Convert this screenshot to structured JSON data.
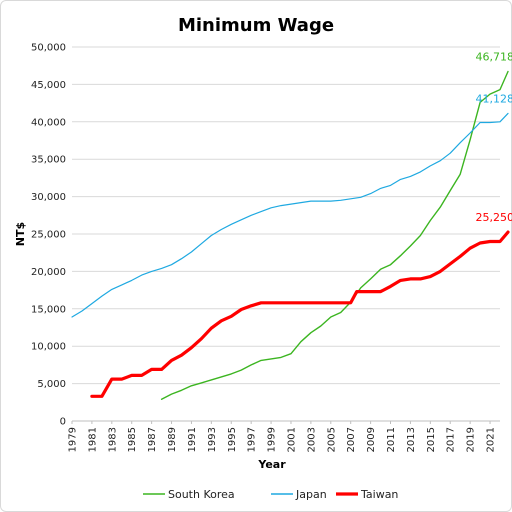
{
  "chart_data": {
    "type": "line",
    "title": "Minimum Wage",
    "xlabel": "Year",
    "ylabel": "NT$",
    "ylim": [
      0,
      50000
    ],
    "xlim": [
      1979,
      2022
    ],
    "yticks": [
      "0",
      "5,000",
      "10,000",
      "15,000",
      "20,000",
      "25,000",
      "30,000",
      "35,000",
      "40,000",
      "45,000",
      "50,000"
    ],
    "xticks": [
      "1979",
      "1981",
      "1983",
      "1985",
      "1987",
      "1989",
      "1991",
      "1993",
      "1995",
      "1997",
      "1999",
      "2001",
      "2003",
      "2005",
      "2007",
      "2009",
      "2011",
      "2013",
      "2015",
      "2017",
      "2019",
      "2021"
    ],
    "grid": true,
    "legend": "bottom",
    "series": [
      {
        "name": "South Korea",
        "color": "#3cb521",
        "width": 1.4,
        "points": [
          [
            1988,
            2900
          ],
          [
            1989,
            3600
          ],
          [
            1990,
            4100
          ],
          [
            1991,
            4700
          ],
          [
            1992,
            5100
          ],
          [
            1993,
            5500
          ],
          [
            1994,
            5900
          ],
          [
            1995,
            6300
          ],
          [
            1996,
            6800
          ],
          [
            1997,
            7500
          ],
          [
            1998,
            8100
          ],
          [
            1999,
            8300
          ],
          [
            2000,
            8500
          ],
          [
            2001,
            9000
          ],
          [
            2002,
            10600
          ],
          [
            2003,
            11800
          ],
          [
            2004,
            12700
          ],
          [
            2005,
            13900
          ],
          [
            2006,
            14500
          ],
          [
            2007,
            15900
          ],
          [
            2008,
            17800
          ],
          [
            2009,
            19000
          ],
          [
            2010,
            20300
          ],
          [
            2011,
            20900
          ],
          [
            2012,
            22100
          ],
          [
            2013,
            23400
          ],
          [
            2014,
            24800
          ],
          [
            2015,
            26800
          ],
          [
            2016,
            28600
          ],
          [
            2017,
            30800
          ],
          [
            2018,
            33000
          ],
          [
            2019,
            37600
          ],
          [
            2020,
            42600
          ],
          [
            2021,
            43700
          ],
          [
            2022,
            44300
          ],
          [
            2022.8,
            46718
          ]
        ],
        "end_label": "46,718"
      },
      {
        "name": "Japan",
        "color": "#1fa9e1",
        "width": 1.2,
        "points": [
          [
            1979,
            13900
          ],
          [
            1980,
            14700
          ],
          [
            1981,
            15700
          ],
          [
            1982,
            16700
          ],
          [
            1983,
            17600
          ],
          [
            1984,
            18200
          ],
          [
            1985,
            18800
          ],
          [
            1986,
            19500
          ],
          [
            1987,
            20000
          ],
          [
            1988,
            20400
          ],
          [
            1989,
            20900
          ],
          [
            1990,
            21700
          ],
          [
            1991,
            22600
          ],
          [
            1992,
            23700
          ],
          [
            1993,
            24800
          ],
          [
            1994,
            25600
          ],
          [
            1995,
            26300
          ],
          [
            1996,
            26900
          ],
          [
            1997,
            27500
          ],
          [
            1998,
            28000
          ],
          [
            1999,
            28500
          ],
          [
            2000,
            28800
          ],
          [
            2001,
            29000
          ],
          [
            2002,
            29200
          ],
          [
            2003,
            29400
          ],
          [
            2004,
            29400
          ],
          [
            2005,
            29400
          ],
          [
            2006,
            29500
          ],
          [
            2007,
            29700
          ],
          [
            2008,
            29900
          ],
          [
            2009,
            30400
          ],
          [
            2010,
            31100
          ],
          [
            2011,
            31500
          ],
          [
            2012,
            32300
          ],
          [
            2013,
            32700
          ],
          [
            2014,
            33300
          ],
          [
            2015,
            34100
          ],
          [
            2016,
            34800
          ],
          [
            2017,
            35800
          ],
          [
            2018,
            37200
          ],
          [
            2019,
            38500
          ],
          [
            2020,
            39900
          ],
          [
            2021,
            39900
          ],
          [
            2022,
            40000
          ],
          [
            2022.8,
            41128
          ]
        ],
        "end_label": "41,128"
      },
      {
        "name": "Taiwan",
        "color": "#ff0000",
        "width": 3.2,
        "points": [
          [
            1981,
            3300
          ],
          [
            1982,
            3300
          ],
          [
            1983,
            5600
          ],
          [
            1984,
            5600
          ],
          [
            1985,
            6100
          ],
          [
            1986,
            6100
          ],
          [
            1987,
            6900
          ],
          [
            1988,
            6900
          ],
          [
            1989,
            8100
          ],
          [
            1990,
            8800
          ],
          [
            1991,
            9800
          ],
          [
            1992,
            11000
          ],
          [
            1993,
            12400
          ],
          [
            1994,
            13400
          ],
          [
            1995,
            14000
          ],
          [
            1996,
            14900
          ],
          [
            1997,
            15400
          ],
          [
            1998,
            15800
          ],
          [
            2007,
            15800
          ],
          [
            2007.6,
            17300
          ],
          [
            2010,
            17300
          ],
          [
            2011,
            18000
          ],
          [
            2012,
            18800
          ],
          [
            2013,
            19000
          ],
          [
            2014,
            19000
          ],
          [
            2015,
            19300
          ],
          [
            2016,
            20000
          ],
          [
            2017,
            21000
          ],
          [
            2018,
            22000
          ],
          [
            2019,
            23100
          ],
          [
            2020,
            23800
          ],
          [
            2021,
            24000
          ],
          [
            2022,
            24000
          ],
          [
            2022.8,
            25250
          ]
        ],
        "end_label": "25,250"
      }
    ]
  }
}
